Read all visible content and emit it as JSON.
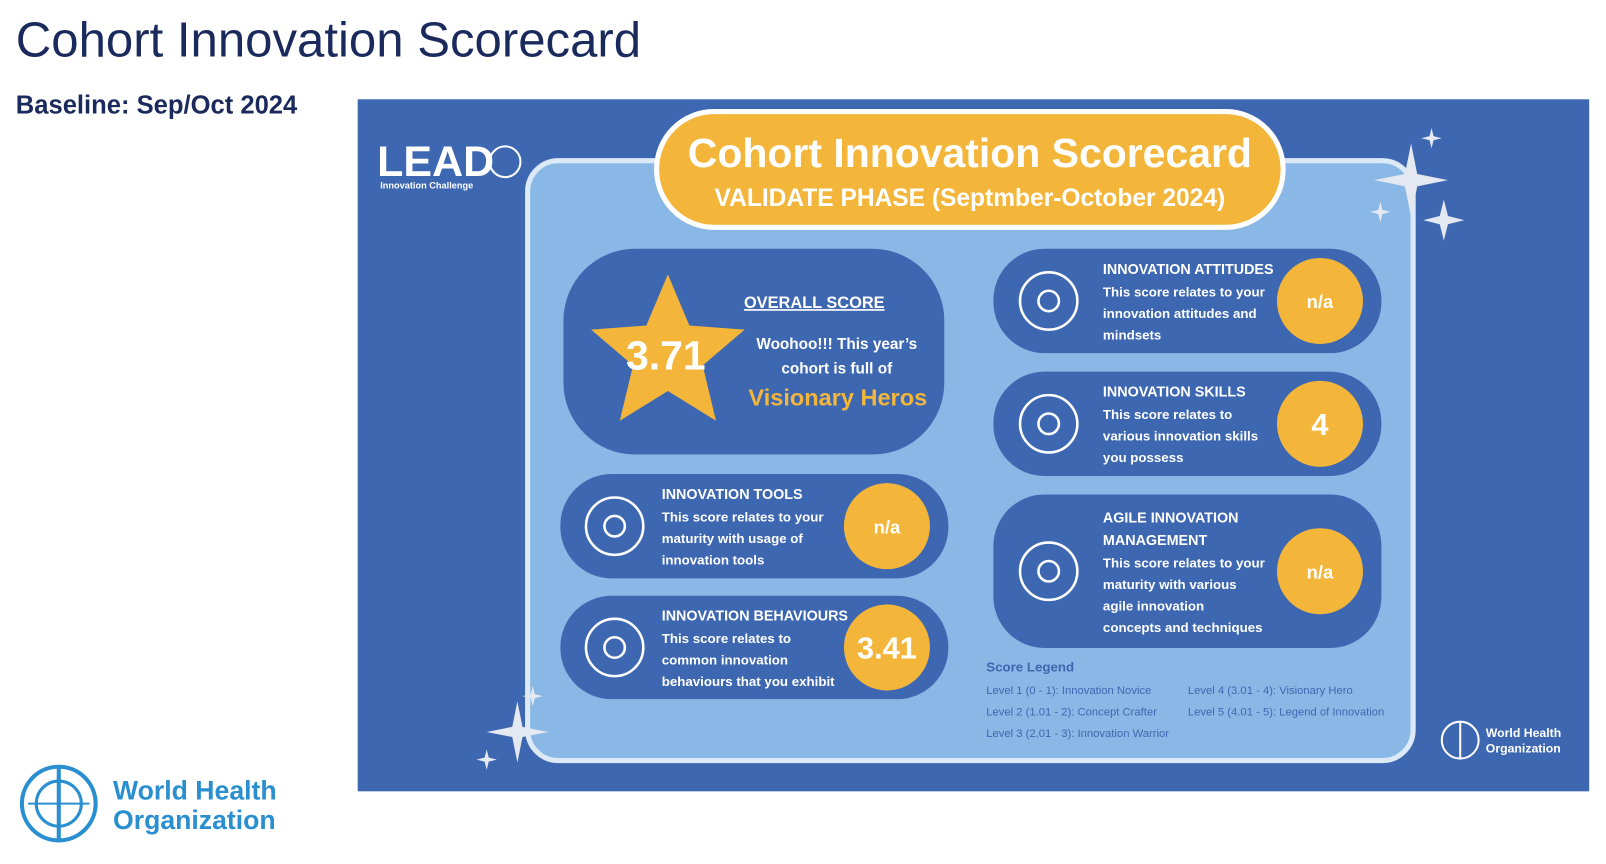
{
  "header": {
    "title": "Cohort Innovation Scorecard",
    "subtitle": "Baseline: Sep/Oct 2024"
  },
  "who_logo": {
    "lines": [
      "World Health",
      "Organization"
    ]
  },
  "infographic": {
    "lead_logo": {
      "name": "LEAD",
      "tagline": "Innovation Challenge"
    },
    "banner": {
      "title": "Cohort Innovation Scorecard",
      "subtitle": "VALIDATE PHASE (Septmber-October 2024)"
    },
    "overall": {
      "label": "OVERALL SCORE",
      "score": 3.71,
      "message": [
        "Woohoo!!! This year’s",
        "cohort is full of"
      ],
      "highlight": "Visionary Heros"
    },
    "cards": [
      {
        "title": [
          "INNOVATION TOOLS"
        ],
        "description": [
          "This score relates to your",
          "maturity with usage of",
          "innovation tools"
        ],
        "score": "n/a"
      },
      {
        "title": [
          "INNOVATION BEHAVIOURS"
        ],
        "description": [
          "This score relates to",
          "common innovation",
          "behaviours that you exhibit"
        ],
        "score": 3.41
      },
      {
        "title": [
          "INNOVATION ATTITUDES"
        ],
        "description": [
          "This score relates to your",
          "innovation attitudes and",
          "mindsets"
        ],
        "score": "n/a"
      },
      {
        "title": [
          "INNOVATION SKILLS"
        ],
        "description": [
          "This score relates to",
          "various innovation skills",
          "you possess"
        ],
        "score": 4
      },
      {
        "title": [
          "AGILE INNOVATION",
          "MANAGEMENT"
        ],
        "description": [
          "This score relates to your",
          "maturity with various",
          "agile innovation",
          "concepts and techniques"
        ],
        "score": "n/a"
      }
    ],
    "legend": {
      "title": "Score Legend",
      "items": [
        "Level 1 (0 - 1): Innovation Novice",
        "Level 2 (1.01 - 2): Concept Crafter",
        "Level 3 (2.01 - 3): Innovation Warrior",
        "Level 4 (3.01 - 4): Visionary Hero",
        "Level 5 (4.01 - 5): Legend of Innovation"
      ]
    },
    "who_logo": {
      "lines": [
        "World Health",
        "Organization"
      ]
    }
  }
}
